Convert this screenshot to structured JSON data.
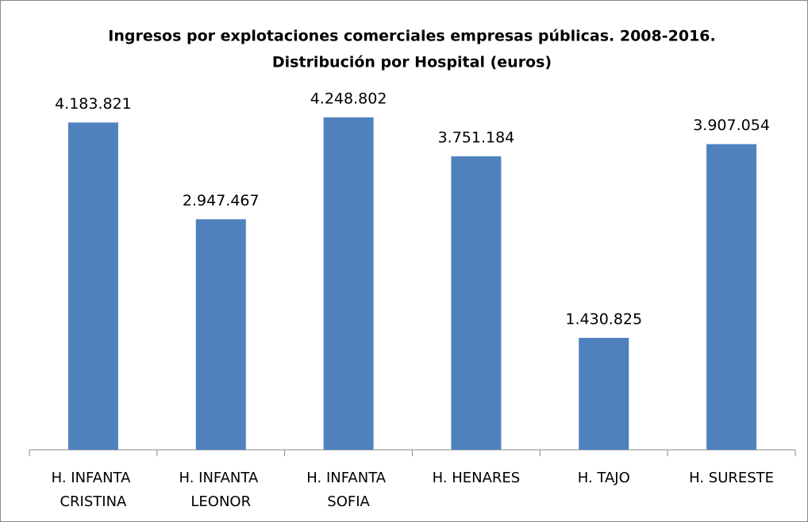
{
  "chart_data": {
    "type": "bar",
    "title": "Ingresos por explotaciones comerciales empresas públicas. 2008-2016.",
    "subtitle": "Distribución por Hospital  (euros)",
    "categories": [
      "H. INFANTA CRISTINA",
      "H. INFANTA LEONOR",
      "H. INFANTA SOFIA",
      "H. HENARES",
      "H. TAJO",
      "H. SURESTE"
    ],
    "values": [
      4183821,
      2947467,
      4248802,
      3751184,
      1430825,
      3907054
    ],
    "value_labels": [
      "4.183.821",
      "2.947.467",
      "4.248.802",
      "3.751.184",
      "1.430.825",
      "3.907.054"
    ],
    "color": "#4f81bd"
  }
}
